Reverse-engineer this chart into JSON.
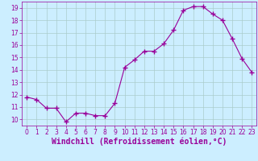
{
  "x": [
    0,
    1,
    2,
    3,
    4,
    5,
    6,
    7,
    8,
    9,
    10,
    11,
    12,
    13,
    14,
    15,
    16,
    17,
    18,
    19,
    20,
    21,
    22,
    23
  ],
  "y": [
    11.8,
    11.6,
    10.9,
    10.9,
    9.8,
    10.5,
    10.5,
    10.3,
    10.3,
    11.3,
    14.2,
    14.8,
    15.5,
    15.5,
    16.1,
    17.2,
    18.8,
    19.1,
    19.1,
    18.5,
    18.0,
    16.5,
    14.9,
    13.8
  ],
  "line_color": "#990099",
  "marker": "+",
  "marker_size": 4,
  "bg_color": "#cceeff",
  "grid_color": "#aacccc",
  "xlabel": "Windchill (Refroidissement éolien,°C)",
  "xlabel_color": "#990099",
  "ylim": [
    9.5,
    19.5
  ],
  "xlim": [
    -0.5,
    23.5
  ],
  "yticks": [
    10,
    11,
    12,
    13,
    14,
    15,
    16,
    17,
    18,
    19
  ],
  "xticks": [
    0,
    1,
    2,
    3,
    4,
    5,
    6,
    7,
    8,
    9,
    10,
    11,
    12,
    13,
    14,
    15,
    16,
    17,
    18,
    19,
    20,
    21,
    22,
    23
  ],
  "tick_color": "#990099",
  "tick_fontsize": 5.5,
  "xlabel_fontsize": 7.0,
  "line_width": 0.8,
  "marker_edge_width": 1.0
}
